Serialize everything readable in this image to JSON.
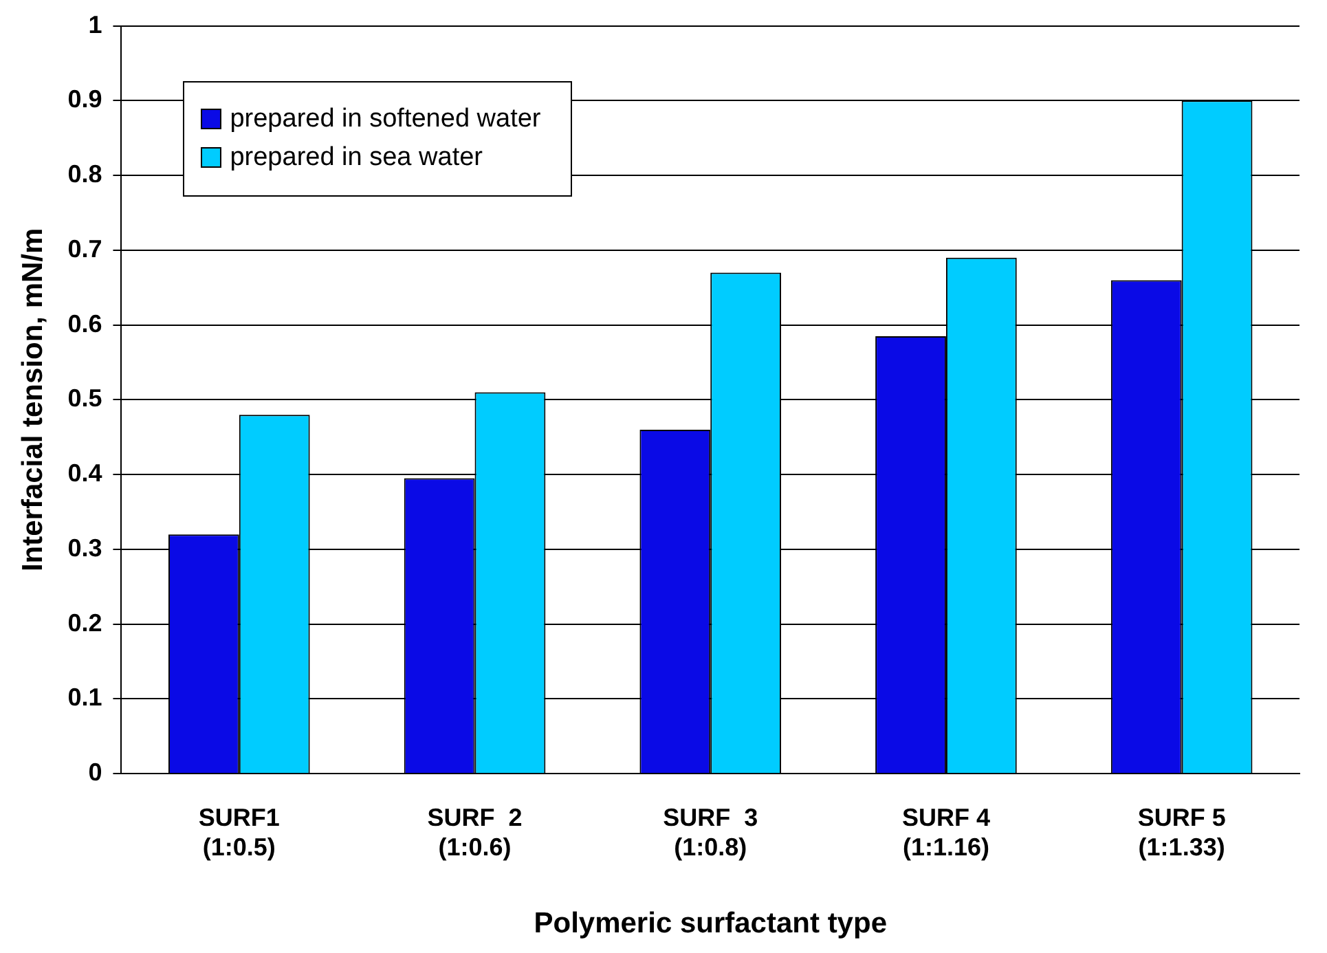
{
  "chart_data": {
    "type": "bar",
    "xlabel": "Polymeric surfactant type",
    "ylabel": "Interfacial tension, mN/m",
    "categories": [
      "SURF1\n(1:0.5)",
      "SURF  2\n(1:0.6)",
      "SURF  3\n(1:0.8)",
      "SURF 4\n(1:1.16)",
      "SURF 5\n(1:1.33)"
    ],
    "series": [
      {
        "name": "prepared in softened water",
        "color": "#0a0ae6",
        "values": [
          0.32,
          0.395,
          0.46,
          0.585,
          0.66
        ]
      },
      {
        "name": "prepared in sea water",
        "color": "#00ccff",
        "values": [
          0.48,
          0.51,
          0.67,
          0.69,
          0.9
        ]
      }
    ],
    "ylim": [
      0,
      1
    ],
    "yticks": [
      0,
      0.1,
      0.2,
      0.3,
      0.4,
      0.5,
      0.6,
      0.7,
      0.8,
      0.9,
      1
    ],
    "grid": "y",
    "legend": "top left"
  }
}
